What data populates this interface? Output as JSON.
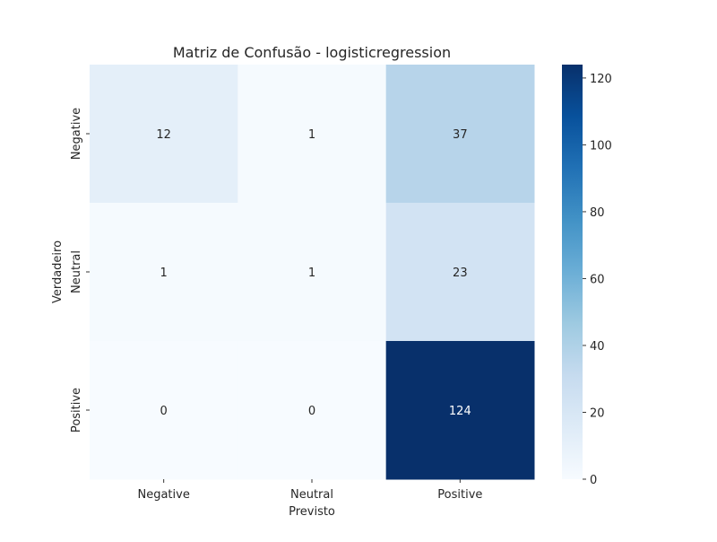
{
  "chart_data": {
    "type": "heatmap",
    "title": "Matriz de Confusão - logisticregression",
    "xlabel": "Previsto",
    "ylabel": "Verdadeiro",
    "x_categories": [
      "Negative",
      "Neutral",
      "Positive"
    ],
    "y_categories": [
      "Negative",
      "Neutral",
      "Positive"
    ],
    "values": [
      [
        12,
        1,
        37
      ],
      [
        1,
        1,
        23
      ],
      [
        0,
        0,
        124
      ]
    ],
    "colormap": "Blues",
    "value_range": [
      0,
      124
    ],
    "colorbar": {
      "ticks": [
        0,
        20,
        40,
        60,
        80,
        100,
        120
      ],
      "tick_labels": [
        "0",
        "20",
        "40",
        "60",
        "80",
        "100",
        "120"
      ]
    },
    "annotations": true,
    "grid": false
  }
}
